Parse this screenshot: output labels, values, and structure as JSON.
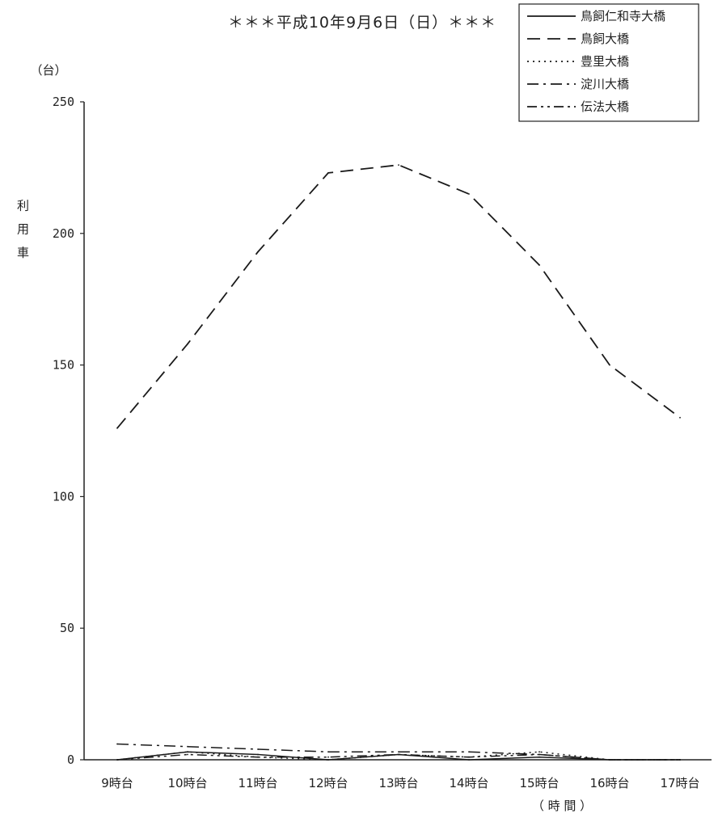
{
  "chart_data": {
    "type": "line",
    "title": "＊＊＊平成10年9月6日（日）＊＊＊",
    "ylabel": "利用車",
    "yunit": "（台）",
    "xlabel": "（ 時 間 ）",
    "categories": [
      "9時台",
      "10時台",
      "11時台",
      "12時台",
      "13時台",
      "14時台",
      "15時台",
      "16時台",
      "17時台"
    ],
    "ylim": [
      0,
      250
    ],
    "yticks": [
      0,
      50,
      100,
      150,
      200,
      250
    ],
    "legend_position": "top-right",
    "grid": false,
    "series": [
      {
        "name": "鳥飼仁和寺大橋",
        "style": "solid",
        "values": [
          0,
          3,
          2,
          0,
          2,
          0,
          1,
          0,
          0
        ]
      },
      {
        "name": "鳥飼大橋",
        "style": "dashed",
        "values": [
          126,
          158,
          193,
          223,
          226,
          215,
          188,
          150,
          130
        ]
      },
      {
        "name": "豊里大橋",
        "style": "dotted",
        "values": [
          0,
          3,
          1,
          0,
          2,
          1,
          3,
          0,
          0
        ]
      },
      {
        "name": "淀川大橋",
        "style": "dashdot",
        "values": [
          6,
          5,
          4,
          3,
          3,
          3,
          2,
          0,
          0
        ]
      },
      {
        "name": "伝法大橋",
        "style": "dashdotdot",
        "values": [
          0,
          2,
          1,
          1,
          2,
          1,
          2,
          0,
          0
        ]
      }
    ]
  }
}
